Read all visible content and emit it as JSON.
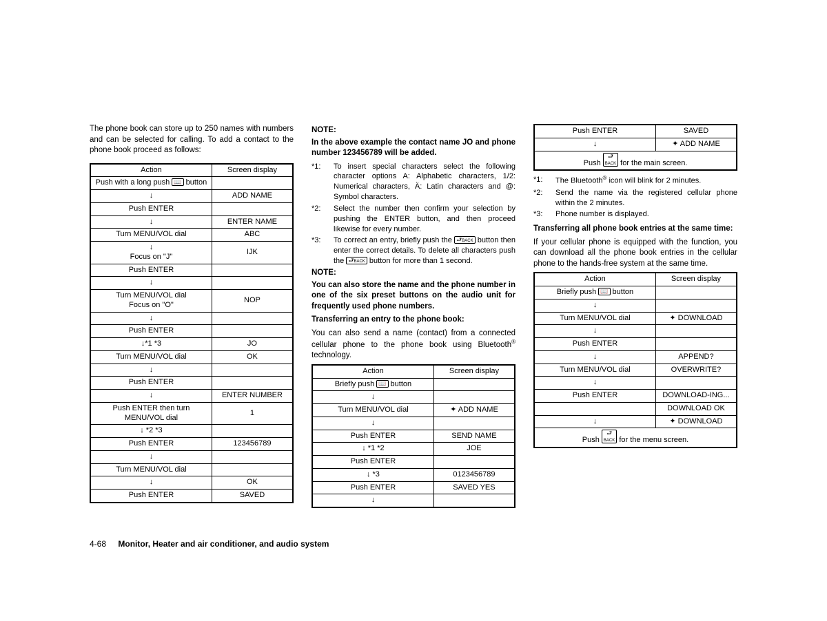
{
  "intro": "The phone book can store up to 250 names with numbers and can be selected for calling. To add a contact to the phone book proceed as follows:",
  "table1": {
    "headers": [
      "Action",
      "Screen display"
    ],
    "rows": [
      [
        "Push with a long push 📖 button",
        ""
      ],
      [
        "↓",
        "ADD NAME"
      ],
      [
        "Push ENTER",
        ""
      ],
      [
        "↓",
        "ENTER NAME"
      ],
      [
        "Turn MENU/VOL dial",
        "ABC"
      ],
      [
        "↓\nFocus on \"J\"",
        "IJK"
      ],
      [
        "Push ENTER",
        ""
      ],
      [
        "↓",
        ""
      ],
      [
        "Turn MENU/VOL dial\nFocus on \"O\"",
        "NOP"
      ],
      [
        "↓",
        ""
      ],
      [
        "Push ENTER",
        ""
      ],
      [
        "↓*1 *3",
        "JO"
      ],
      [
        "Turn MENU/VOL dial",
        "OK"
      ],
      [
        "↓",
        ""
      ],
      [
        "Push ENTER",
        ""
      ],
      [
        "↓",
        "ENTER NUMBER"
      ],
      [
        "Push ENTER then turn MENU/VOL dial",
        "1"
      ],
      [
        "↓ *2 *3",
        ""
      ],
      [
        "Push ENTER",
        "123456789"
      ],
      [
        "↓",
        ""
      ],
      [
        "Turn MENU/VOL dial",
        ""
      ],
      [
        "↓",
        "OK"
      ],
      [
        "Push ENTER",
        "SAVED"
      ]
    ]
  },
  "col2": {
    "note1_label": "NOTE:",
    "note1_text": "In the above example the contact name JO and phone number 123456789 will be added.",
    "fn": [
      [
        "*1:",
        "To insert special characters select the following character options A: Alphabetic characters, 1/2: Numerical characters, Ä: Latin characters and @: Symbol characters."
      ],
      [
        "*2:",
        "Select the number then confirm your selection by pushing the ENTER button, and then proceed likewise for every number."
      ],
      [
        "*3:",
        "To correct an entry, briefly push the BACK button then enter the correct details. To delete all characters push the BACK button for more than 1 second."
      ]
    ],
    "note2_label": "NOTE:",
    "note2_text": "You can also store the name and the phone number in one of the six preset buttons on the audio unit for frequently used phone numbers.",
    "transfer_heading": "Transferring an entry to the phone book:",
    "transfer_para": "You can also send a name (contact) from a connected cellular phone to the phone book using Bluetooth® technology."
  },
  "table2": {
    "headers": [
      "Action",
      "Screen display"
    ],
    "rows": [
      [
        "Briefly push 📖 button",
        ""
      ],
      [
        "↓",
        ""
      ],
      [
        "Turn MENU/VOL dial",
        "✱ ADD NAME"
      ],
      [
        "↓",
        ""
      ],
      [
        "Push ENTER",
        "SEND NAME"
      ],
      [
        "↓ *1 *2",
        "JOE"
      ],
      [
        "Push ENTER",
        ""
      ],
      [
        "↓ *3",
        "0123456789"
      ],
      [
        "Push ENTER",
        "SAVED YES"
      ],
      [
        "↓",
        ""
      ]
    ]
  },
  "table3": {
    "rows": [
      [
        "Push ENTER",
        "SAVED"
      ],
      [
        "↓",
        "✱ ADD NAME"
      ],
      [
        "Push BACK for the main screen.",
        ""
      ]
    ]
  },
  "col3": {
    "fn": [
      [
        "*1:",
        "The Bluetooth® icon will blink for 2 minutes."
      ],
      [
        "*2:",
        "Send the name via the registered cellular phone within the 2 minutes."
      ],
      [
        "*3:",
        "Phone number is displayed."
      ]
    ],
    "heading": "Transferring all phone book entries at the same time:",
    "para": "If your cellular phone is equipped with the function, you can download all the phone book entries in the cellular phone to the hands-free system at the same time."
  },
  "table4": {
    "headers": [
      "Action",
      "Screen display"
    ],
    "rows": [
      [
        "Briefly push 📖 button",
        ""
      ],
      [
        "↓",
        ""
      ],
      [
        "Turn MENU/VOL dial",
        "✱ DOWNLOAD"
      ],
      [
        "↓",
        ""
      ],
      [
        "Push ENTER",
        ""
      ],
      [
        "↓",
        "APPEND?"
      ],
      [
        "Turn MENU/VOL dial",
        "OVERWRITE?"
      ],
      [
        "↓",
        ""
      ],
      [
        "Push ENTER",
        "DOWNLOAD-ING..."
      ],
      [
        "",
        "DOWNLOAD OK"
      ],
      [
        "↓",
        "✱ DOWNLOAD"
      ],
      [
        "Push BACK for the menu screen.",
        ""
      ]
    ]
  },
  "footer": {
    "page": "4-68",
    "section": "Monitor, Heater and air conditioner, and audio system"
  }
}
